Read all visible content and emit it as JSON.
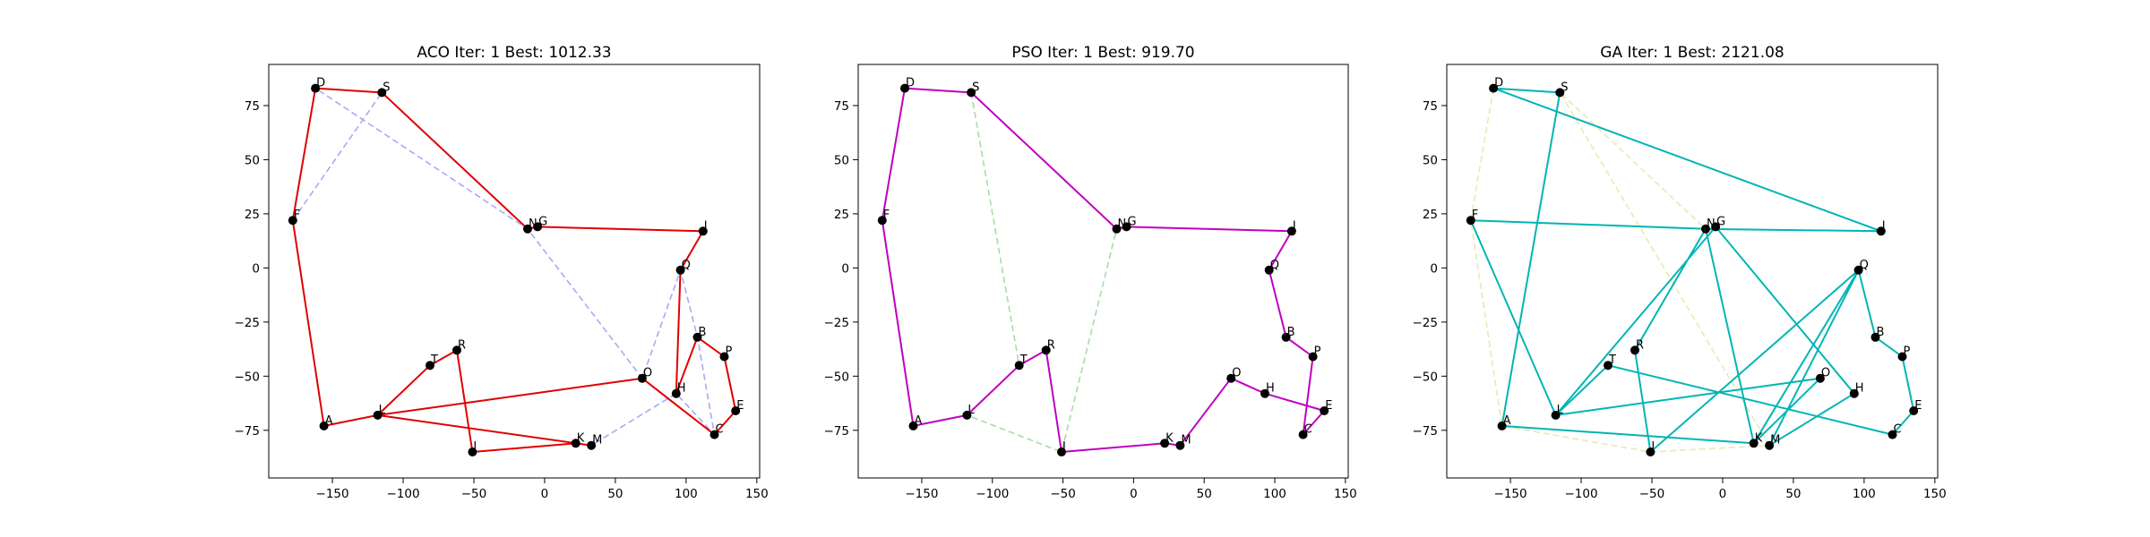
{
  "chart_data": [
    {
      "type": "line",
      "title": "ACO Iter: 1  Best: 1012.33",
      "xlabel": "",
      "ylabel": "",
      "xlim": [
        -195,
        152
      ],
      "ylim": [
        -97,
        94
      ],
      "xticks": [
        -150,
        -100,
        -50,
        0,
        50,
        100,
        150
      ],
      "yticks": [
        -75,
        -50,
        -25,
        0,
        25,
        50,
        75
      ],
      "grid": false,
      "colors": {
        "best": "#e00000",
        "current": "#a9a9f5"
      },
      "best_tour": [
        "D",
        "S",
        "N",
        "G",
        "J",
        "Q",
        "H",
        "B",
        "P",
        "E",
        "C",
        "O",
        "L",
        "M",
        "K",
        "I",
        "R",
        "T",
        "L",
        "A",
        "F",
        "D"
      ],
      "current_tour": [
        "F",
        "S",
        "D",
        "N",
        "O",
        "Q",
        "B",
        "C",
        "H",
        "M",
        "K"
      ]
    },
    {
      "type": "line",
      "title": "PSO Iter: 1  Best: 919.70",
      "xlabel": "",
      "ylabel": "",
      "xlim": [
        -195,
        152
      ],
      "ylim": [
        -97,
        94
      ],
      "xticks": [
        -150,
        -100,
        -50,
        0,
        50,
        100,
        150
      ],
      "yticks": [
        -75,
        -50,
        -25,
        0,
        25,
        50,
        75
      ],
      "grid": false,
      "colors": {
        "best": "#c000c0",
        "current": "#a8dca8"
      },
      "best_tour": [
        "S",
        "D",
        "F",
        "A",
        "L",
        "T",
        "R",
        "I",
        "K",
        "M",
        "O",
        "H",
        "E",
        "C",
        "P",
        "B",
        "Q",
        "J",
        "G",
        "N",
        "S"
      ],
      "current_tour": [
        "S",
        "T",
        "L",
        "I",
        "N"
      ]
    },
    {
      "type": "line",
      "title": "GA Iter: 1  Best: 2121.08",
      "xlabel": "",
      "ylabel": "",
      "xlim": [
        -195,
        152
      ],
      "ylim": [
        -97,
        94
      ],
      "xticks": [
        -150,
        -100,
        -50,
        0,
        50,
        100,
        150
      ],
      "yticks": [
        -75,
        -50,
        -25,
        0,
        25,
        50,
        75
      ],
      "grid": false,
      "colors": {
        "best": "#00b5b5",
        "current": "#e4ecb4"
      },
      "best_tour": [
        "D",
        "J",
        "N",
        "K",
        "O",
        "L",
        "T",
        "C",
        "E",
        "P",
        "B",
        "Q",
        "M",
        "H",
        "G",
        "L",
        "F",
        "N",
        "R",
        "I",
        "Q",
        "K",
        "A",
        "S",
        "D"
      ],
      "current_tour": [
        "D",
        "F",
        "A",
        "I",
        "M",
        "S",
        "N",
        "J"
      ]
    }
  ],
  "cities": [
    {
      "label": "D",
      "x": -162,
      "y": 83
    },
    {
      "label": "S",
      "x": -115,
      "y": 81
    },
    {
      "label": "F",
      "x": -178,
      "y": 22
    },
    {
      "label": "N",
      "x": -12,
      "y": 18
    },
    {
      "label": "G",
      "x": -5,
      "y": 19
    },
    {
      "label": "J",
      "x": 112,
      "y": 17
    },
    {
      "label": "Q",
      "x": 96,
      "y": -1
    },
    {
      "label": "B",
      "x": 108,
      "y": -32
    },
    {
      "label": "P",
      "x": 127,
      "y": -41
    },
    {
      "label": "E",
      "x": 135,
      "y": -66
    },
    {
      "label": "C",
      "x": 120,
      "y": -77
    },
    {
      "label": "H",
      "x": 93,
      "y": -58
    },
    {
      "label": "O",
      "x": 69,
      "y": -51
    },
    {
      "label": "M",
      "x": 33,
      "y": -82
    },
    {
      "label": "K",
      "x": 22,
      "y": -81
    },
    {
      "label": "I",
      "x": -51,
      "y": -85
    },
    {
      "label": "R",
      "x": -62,
      "y": -38
    },
    {
      "label": "T",
      "x": -81,
      "y": -45
    },
    {
      "label": "L",
      "x": -118,
      "y": -68
    },
    {
      "label": "A",
      "x": -156,
      "y": -73
    }
  ]
}
